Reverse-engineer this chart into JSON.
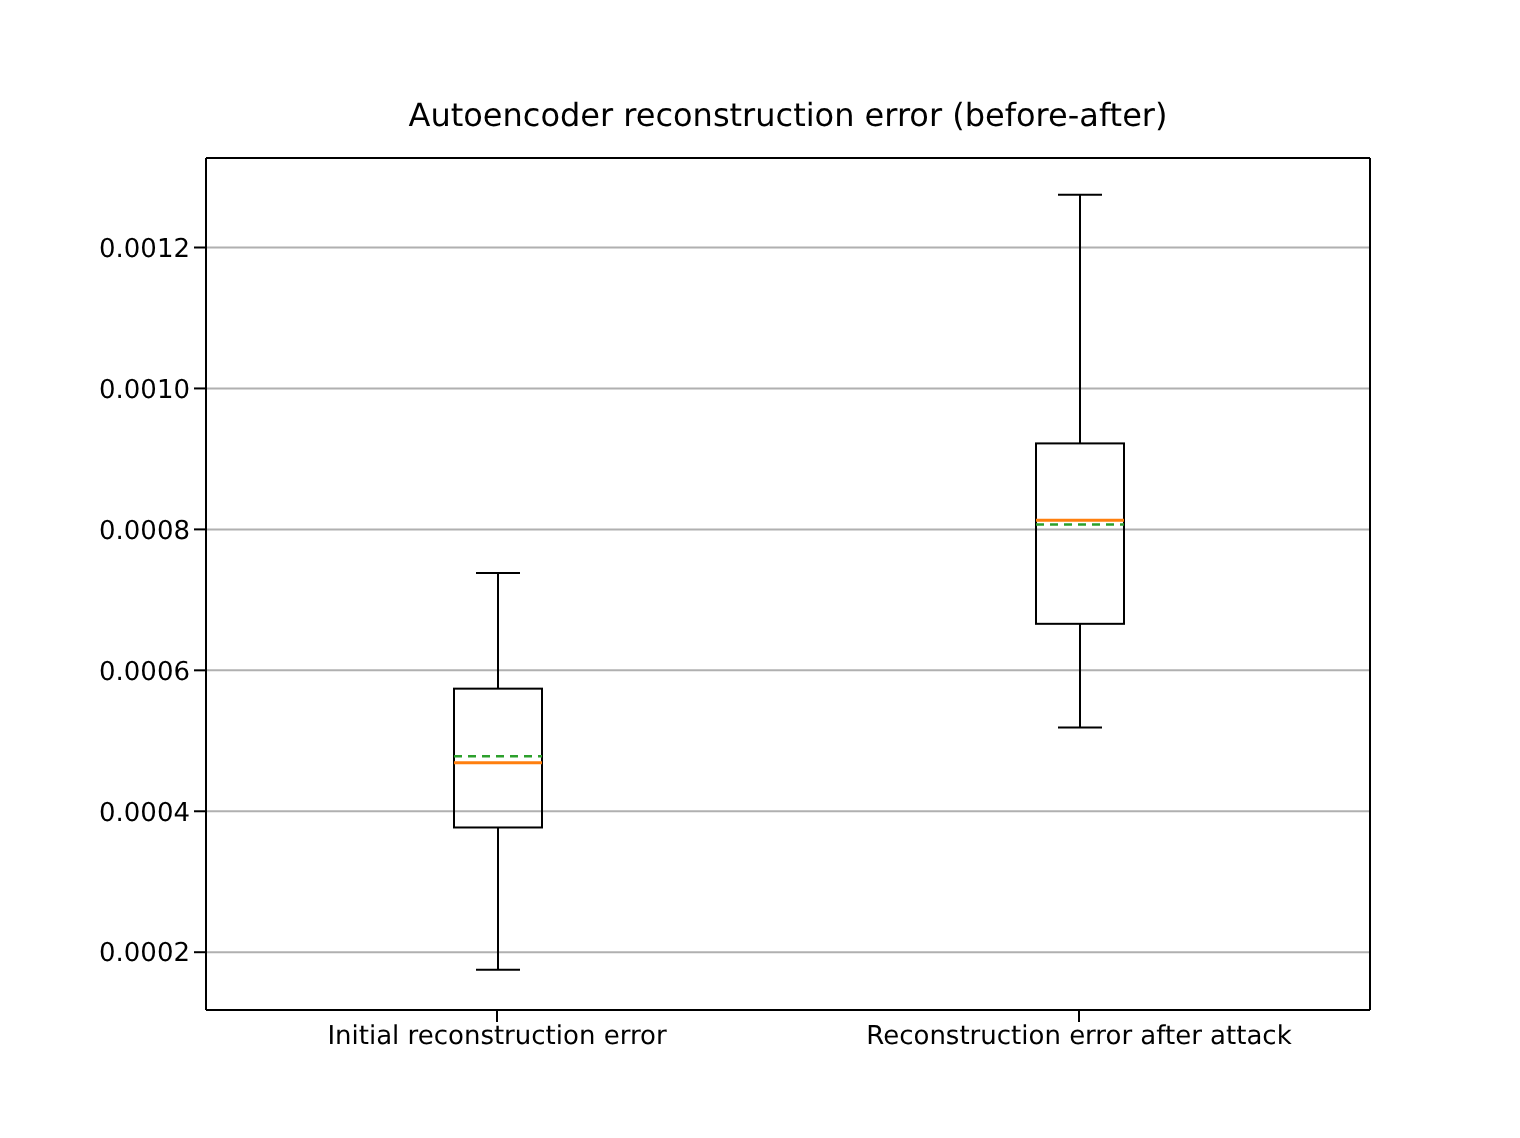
{
  "chart_data": {
    "type": "box",
    "title": "Autoencoder reconstruction error (before-after)",
    "categories": [
      "Initial reconstruction error",
      "Reconstruction error after attack"
    ],
    "boxes": [
      {
        "low": 0.000175,
        "q1": 0.000377,
        "median": 0.000469,
        "q3": 0.000574,
        "high": 0.000738,
        "mean": 0.000478
      },
      {
        "low": 0.000519,
        "q1": 0.000666,
        "median": 0.000813,
        "q3": 0.000922,
        "high": 0.001275,
        "mean": 0.000807
      }
    ],
    "ylim": [
      0.000118,
      0.001327
    ],
    "yticks": [
      {
        "value": 0.0002,
        "label": "0.0002"
      },
      {
        "value": 0.0004,
        "label": "0.0004"
      },
      {
        "value": 0.0006,
        "label": "0.0006"
      },
      {
        "value": 0.0008,
        "label": "0.0008"
      },
      {
        "value": 0.001,
        "label": "0.0010"
      },
      {
        "value": 0.0012,
        "label": "0.0012"
      }
    ],
    "grid": "y"
  }
}
